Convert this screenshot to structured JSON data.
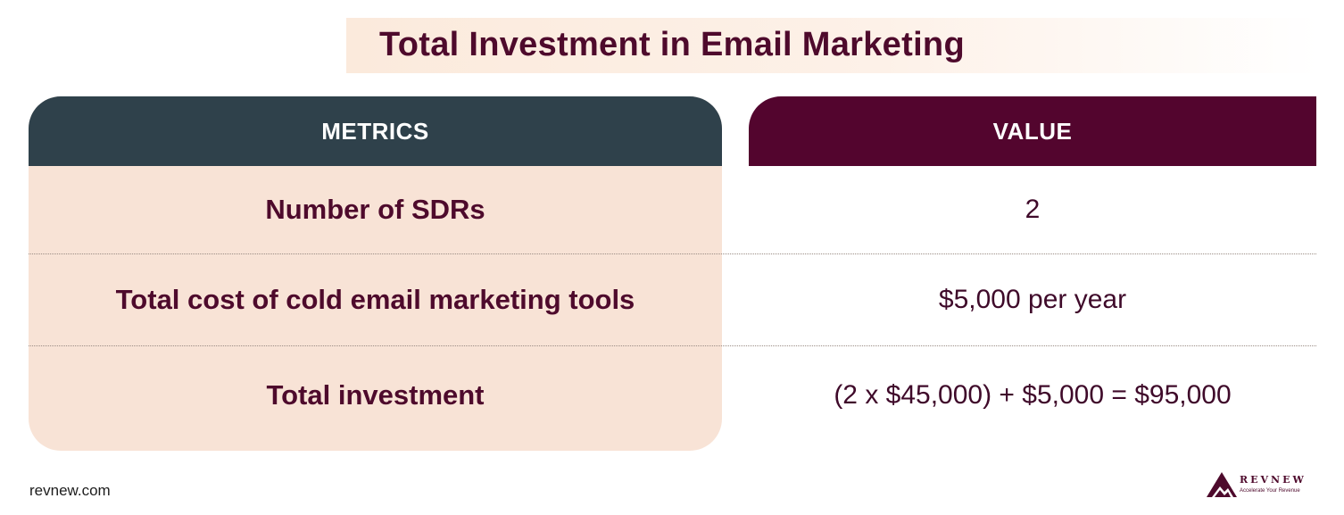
{
  "title": "Total Investment in Email Marketing",
  "table": {
    "headers": {
      "metrics": "METRICS",
      "value": "VALUE"
    },
    "rows": [
      {
        "metric": "Number of SDRs",
        "value": "2"
      },
      {
        "metric": "Total cost of cold email marketing tools",
        "value": "$5,000 per year"
      },
      {
        "metric": "Total investment",
        "value": "(2 x $45,000) + $5,000 = $95,000"
      }
    ]
  },
  "footer": {
    "site": "revnew.com",
    "logo": {
      "name": "REVNEW",
      "tagline": "Accelerate Your Revenue",
      "icon": "mountain-peak-icon"
    }
  },
  "colors": {
    "brand_maroon": "#53052e",
    "header_slate": "#2f414b",
    "panel_peach": "#f8e3d6",
    "title_text": "#4e0a2c"
  }
}
